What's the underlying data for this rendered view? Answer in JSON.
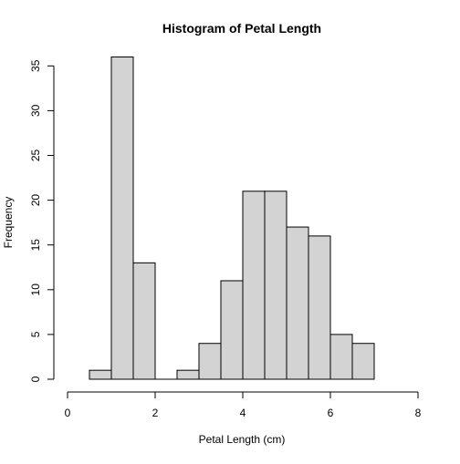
{
  "chart_data": {
    "type": "bar",
    "title": "Histogram of Petal Length",
    "xlabel": "Petal Length (cm)",
    "ylabel": "Frequency",
    "xlim": [
      0,
      8
    ],
    "ylim": [
      0,
      35
    ],
    "x_ticks": [
      0,
      2,
      4,
      6,
      8
    ],
    "y_ticks": [
      0,
      5,
      10,
      15,
      20,
      25,
      30,
      35
    ],
    "bin_edges": [
      0.5,
      1.0,
      1.5,
      2.0,
      2.5,
      3.0,
      3.5,
      4.0,
      4.5,
      5.0,
      5.5,
      6.0,
      6.5,
      7.0
    ],
    "values": [
      1,
      36,
      13,
      0,
      1,
      4,
      11,
      21,
      21,
      17,
      16,
      5,
      4
    ],
    "bar_color": "#d3d3d3",
    "edge_color": "#000000",
    "grid": false
  }
}
